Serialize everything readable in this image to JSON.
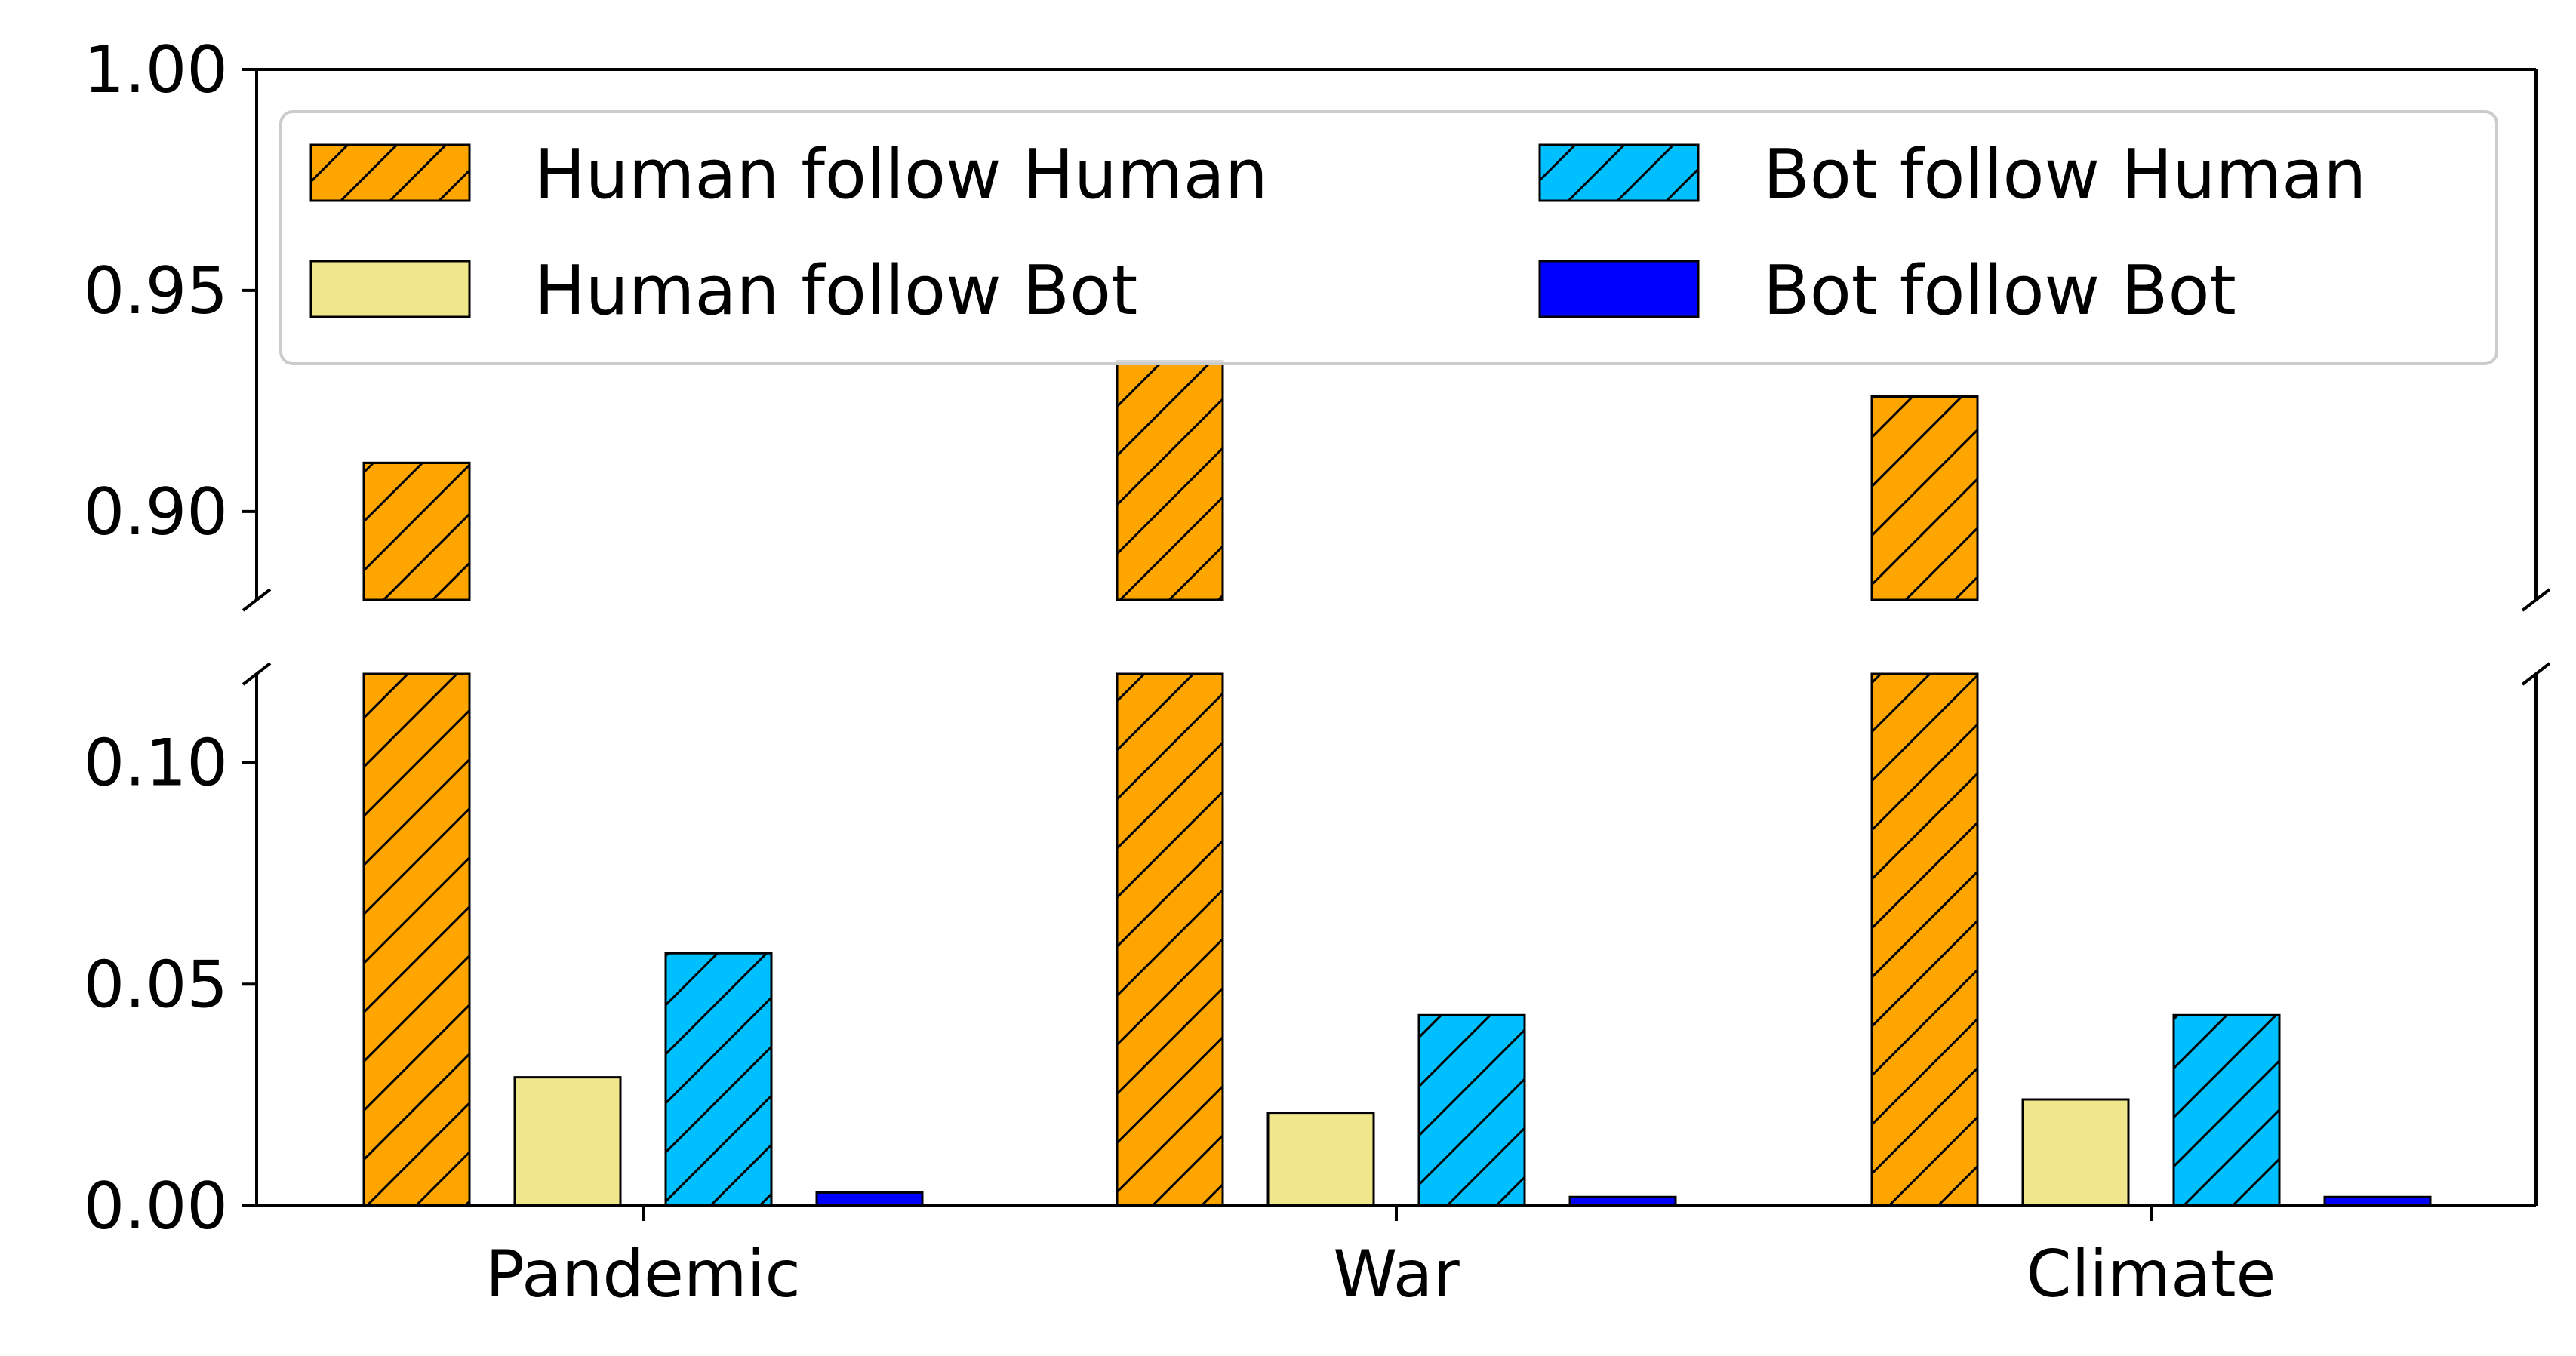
{
  "chart_data": {
    "type": "bar",
    "broken_y_axis": true,
    "categories": [
      "Pandemic",
      "War",
      "Climate"
    ],
    "series": [
      {
        "name": "Human follow Human",
        "values": [
          0.911,
          0.934,
          0.926
        ],
        "color": "#FFA500",
        "hatch": true
      },
      {
        "name": "Human follow Bot",
        "values": [
          0.029,
          0.021,
          0.024
        ],
        "color": "#F0E68C",
        "hatch": false
      },
      {
        "name": "Bot follow Human",
        "values": [
          0.057,
          0.043,
          0.043
        ],
        "color": "#00BFFF",
        "hatch": true
      },
      {
        "name": "Bot follow Bot",
        "values": [
          0.003,
          0.002,
          0.002
        ],
        "color": "#0000FF",
        "hatch": false
      }
    ],
    "upper_panel": {
      "ylim": [
        0.88,
        1.0
      ],
      "yticks": [
        "0.90",
        "0.95",
        "1.00"
      ]
    },
    "lower_panel": {
      "ylim": [
        0.0,
        0.12
      ],
      "yticks": [
        "0.00",
        "0.05",
        "0.10"
      ]
    },
    "title": "",
    "xlabel": "",
    "ylabel": "",
    "legend_position": "top, two columns",
    "grid": false
  }
}
